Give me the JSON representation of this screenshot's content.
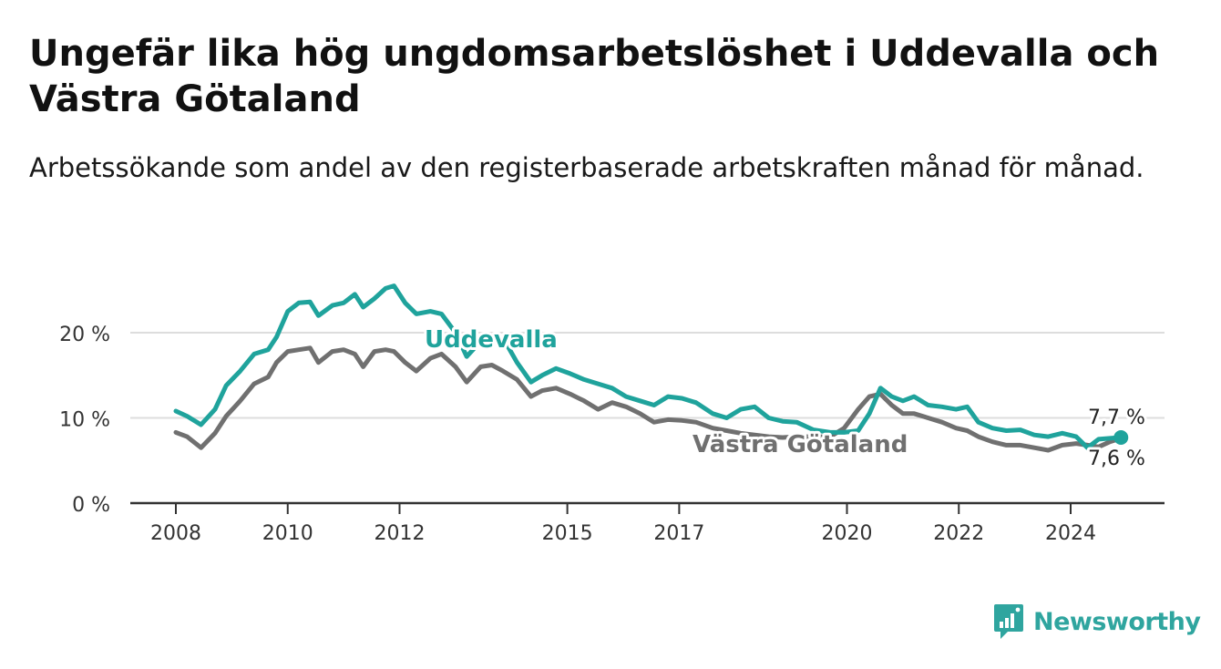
{
  "header": {
    "title": "Ungefär lika hög ungdomsarbetslöshet i Uddevalla och Västra Götaland",
    "subtitle": "Arbetssökande som andel av den registerbaserade arbetskraften månad för månad."
  },
  "brand": {
    "name": "Newsworthy",
    "color": "#2fa59f"
  },
  "chart_data": {
    "type": "line",
    "title": "Ungefär lika hög ungdomsarbetslöshet i Uddevalla och Västra Götaland",
    "subtitle": "Arbetssökande som andel av den registerbaserade arbetskraften månad för månad.",
    "xlabel": "",
    "ylabel": "",
    "ylim": [
      0,
      27
    ],
    "xlim": [
      2008,
      2025.9
    ],
    "grid": true,
    "legend": "inline labels",
    "y_ticks": [
      {
        "value": 0,
        "label": "0 %"
      },
      {
        "value": 10,
        "label": "10 %"
      },
      {
        "value": 20,
        "label": "20 %"
      }
    ],
    "x_ticks": [
      {
        "value": 2008,
        "label": "2008"
      },
      {
        "value": 2010,
        "label": "2010"
      },
      {
        "value": 2012,
        "label": "2012"
      },
      {
        "value": 2015,
        "label": "2015"
      },
      {
        "value": 2017,
        "label": "2017"
      },
      {
        "value": 2020,
        "label": "2020"
      },
      {
        "value": 2022,
        "label": "2022"
      },
      {
        "value": 2024,
        "label": "2024"
      }
    ],
    "series": [
      {
        "name": "Uddevalla",
        "color": "#1fa39c",
        "end_label": "7,7 %",
        "x": [
          2008.0,
          2008.2,
          2008.45,
          2008.7,
          2008.9,
          2009.15,
          2009.4,
          2009.65,
          2009.8,
          2010.0,
          2010.2,
          2010.4,
          2010.55,
          2010.8,
          2011.0,
          2011.2,
          2011.35,
          2011.55,
          2011.75,
          2011.9,
          2012.1,
          2012.3,
          2012.55,
          2012.75,
          2013.0,
          2013.2,
          2013.45,
          2013.65,
          2013.85,
          2014.1,
          2014.35,
          2014.55,
          2014.8,
          2015.05,
          2015.3,
          2015.55,
          2015.8,
          2016.05,
          2016.3,
          2016.55,
          2016.8,
          2017.05,
          2017.3,
          2017.6,
          2017.85,
          2018.1,
          2018.35,
          2018.6,
          2018.85,
          2019.1,
          2019.4,
          2019.7,
          2019.95,
          2020.2,
          2020.4,
          2020.6,
          2020.8,
          2021.0,
          2021.2,
          2021.45,
          2021.7,
          2021.95,
          2022.15,
          2022.35,
          2022.6,
          2022.85,
          2023.1,
          2023.35,
          2023.6,
          2023.85,
          2024.1,
          2024.3,
          2024.5,
          2024.7,
          2024.9
        ],
        "values": [
          10.8,
          10.2,
          9.2,
          11.0,
          13.8,
          15.5,
          17.5,
          18.0,
          19.5,
          22.5,
          23.5,
          23.6,
          22.0,
          23.2,
          23.5,
          24.5,
          23.0,
          24.0,
          25.2,
          25.5,
          23.5,
          22.2,
          22.5,
          22.2,
          20.0,
          17.2,
          19.0,
          19.2,
          19.4,
          16.5,
          14.2,
          15.0,
          15.8,
          15.2,
          14.5,
          14.0,
          13.5,
          12.5,
          12.0,
          11.5,
          12.5,
          12.3,
          11.8,
          10.5,
          10.0,
          11.0,
          11.3,
          10.0,
          9.6,
          9.5,
          8.6,
          8.3,
          8.3,
          8.5,
          10.5,
          13.5,
          12.5,
          12.0,
          12.5,
          11.5,
          11.3,
          11.0,
          11.3,
          9.5,
          8.8,
          8.5,
          8.6,
          8.0,
          7.8,
          8.2,
          7.8,
          6.5,
          7.5,
          7.6,
          7.7
        ]
      },
      {
        "name": "Västra Götaland",
        "color": "#707070",
        "end_label": "7,6 %",
        "x": [
          2008.0,
          2008.2,
          2008.45,
          2008.7,
          2008.9,
          2009.15,
          2009.4,
          2009.65,
          2009.8,
          2010.0,
          2010.2,
          2010.4,
          2010.55,
          2010.8,
          2011.0,
          2011.2,
          2011.35,
          2011.55,
          2011.75,
          2011.9,
          2012.1,
          2012.3,
          2012.55,
          2012.75,
          2013.0,
          2013.2,
          2013.45,
          2013.65,
          2013.85,
          2014.1,
          2014.35,
          2014.55,
          2014.8,
          2015.05,
          2015.3,
          2015.55,
          2015.8,
          2016.05,
          2016.3,
          2016.55,
          2016.8,
          2017.05,
          2017.3,
          2017.6,
          2017.85,
          2018.1,
          2018.35,
          2018.6,
          2018.85,
          2019.1,
          2019.4,
          2019.7,
          2019.95,
          2020.2,
          2020.4,
          2020.6,
          2020.8,
          2021.0,
          2021.2,
          2021.45,
          2021.7,
          2021.95,
          2022.15,
          2022.35,
          2022.6,
          2022.85,
          2023.1,
          2023.35,
          2023.6,
          2023.85,
          2024.1,
          2024.3,
          2024.5,
          2024.7,
          2024.9
        ],
        "values": [
          8.3,
          7.8,
          6.5,
          8.2,
          10.2,
          12.0,
          14.0,
          14.8,
          16.5,
          17.8,
          18.0,
          18.2,
          16.5,
          17.8,
          18.0,
          17.5,
          16.0,
          17.8,
          18.0,
          17.8,
          16.5,
          15.5,
          17.0,
          17.5,
          16.0,
          14.2,
          16.0,
          16.2,
          15.5,
          14.5,
          12.5,
          13.2,
          13.5,
          12.8,
          12.0,
          11.0,
          11.8,
          11.3,
          10.5,
          9.5,
          9.8,
          9.7,
          9.5,
          8.8,
          8.5,
          8.2,
          8.0,
          7.8,
          7.7,
          7.8,
          7.8,
          7.8,
          8.8,
          11.0,
          12.5,
          12.8,
          11.5,
          10.5,
          10.5,
          10.0,
          9.5,
          8.8,
          8.5,
          7.8,
          7.2,
          6.8,
          6.8,
          6.5,
          6.2,
          6.8,
          7.0,
          6.8,
          6.6,
          7.2,
          7.6
        ]
      }
    ],
    "annotations": [
      {
        "series": "Uddevalla",
        "text": "Uddevalla"
      },
      {
        "series": "Västra Götaland",
        "text": "Västra Götaland"
      }
    ]
  }
}
